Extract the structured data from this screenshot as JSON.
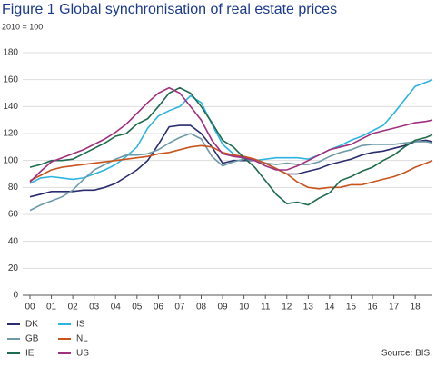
{
  "chart_data": {
    "type": "line",
    "title": "Figure 1  Global synchronisation of real estate prices",
    "subtitle": "2010 = 100",
    "source": "Source: BIS.",
    "x": [
      0,
      0.5,
      1,
      1.5,
      2,
      2.5,
      3,
      3.5,
      4,
      4.5,
      5,
      5.5,
      6,
      6.5,
      7,
      7.5,
      8,
      8.5,
      9,
      9.5,
      10,
      10.5,
      11,
      11.5,
      12,
      12.5,
      13,
      13.5,
      14,
      14.5,
      15,
      15.5,
      16,
      16.5,
      17,
      17.5,
      18,
      18.5,
      18.8
    ],
    "xlim": [
      0,
      18.8
    ],
    "xticks": [
      {
        "value": 0,
        "label": "00"
      },
      {
        "value": 1,
        "label": "01"
      },
      {
        "value": 2,
        "label": "02"
      },
      {
        "value": 3,
        "label": "03"
      },
      {
        "value": 4,
        "label": "04"
      },
      {
        "value": 5,
        "label": "05"
      },
      {
        "value": 6,
        "label": "06"
      },
      {
        "value": 7,
        "label": "07"
      },
      {
        "value": 8,
        "label": "08"
      },
      {
        "value": 9,
        "label": "09"
      },
      {
        "value": 10,
        "label": "10"
      },
      {
        "value": 11,
        "label": "11"
      },
      {
        "value": 12,
        "label": "12"
      },
      {
        "value": 13,
        "label": "13"
      },
      {
        "value": 14,
        "label": "14"
      },
      {
        "value": 15,
        "label": "15"
      },
      {
        "value": 16,
        "label": "16"
      },
      {
        "value": 17,
        "label": "17"
      },
      {
        "value": 18,
        "label": "18"
      }
    ],
    "ylim": [
      0,
      180
    ],
    "yticks": [
      0,
      20,
      40,
      60,
      80,
      100,
      120,
      140,
      160,
      180
    ],
    "grid": true,
    "legend": "bottom-left",
    "series": [
      {
        "name": "DK",
        "color": "#2b2d6e",
        "values": [
          73,
          75,
          77,
          77,
          77,
          78,
          78,
          80,
          83,
          88,
          93,
          100,
          112,
          125,
          126,
          126,
          120,
          110,
          98,
          100,
          100,
          100,
          98,
          94,
          90,
          90,
          92,
          94,
          97,
          99,
          101,
          104,
          106,
          107,
          109,
          111,
          114,
          115,
          114
        ]
      },
      {
        "name": "IS",
        "color": "#2db5e0",
        "values": [
          83,
          87,
          88,
          87,
          86,
          87,
          90,
          93,
          97,
          103,
          110,
          124,
          133,
          137,
          140,
          148,
          143,
          127,
          112,
          105,
          101,
          100,
          101,
          102,
          102,
          102,
          101,
          104,
          108,
          111,
          115,
          118,
          122,
          126,
          135,
          145,
          155,
          158,
          160
        ]
      },
      {
        "name": "GB",
        "color": "#6e9aa8",
        "values": [
          63,
          67,
          70,
          73,
          78,
          86,
          93,
          97,
          101,
          104,
          104,
          105,
          108,
          113,
          117,
          120,
          116,
          103,
          96,
          99,
          101,
          100,
          98,
          97,
          98,
          97,
          97,
          99,
          103,
          106,
          108,
          111,
          112,
          112,
          112,
          113,
          114,
          114,
          113
        ]
      },
      {
        "name": "NL",
        "color": "#c8541e",
        "values": [
          85,
          89,
          93,
          95,
          96,
          97,
          98,
          99,
          100,
          101,
          102,
          103,
          105,
          106,
          108,
          110,
          111,
          110,
          106,
          104,
          103,
          101,
          98,
          94,
          90,
          84,
          80,
          79,
          80,
          80,
          82,
          82,
          84,
          86,
          88,
          91,
          95,
          98,
          100
        ]
      },
      {
        "name": "IE",
        "color": "#1f6b4e",
        "values": [
          95,
          97,
          100,
          100,
          101,
          105,
          109,
          113,
          118,
          120,
          127,
          131,
          140,
          150,
          154,
          150,
          140,
          128,
          115,
          110,
          102,
          95,
          85,
          75,
          68,
          69,
          67,
          72,
          76,
          85,
          88,
          92,
          95,
          100,
          104,
          110,
          115,
          117,
          119
        ]
      },
      {
        "name": "US",
        "color": "#a03080",
        "values": [
          84,
          92,
          99,
          102,
          105,
          108,
          112,
          116,
          121,
          127,
          135,
          143,
          150,
          154,
          150,
          140,
          130,
          115,
          105,
          103,
          102,
          100,
          96,
          93,
          93,
          96,
          100,
          104,
          108,
          110,
          112,
          116,
          120,
          122,
          124,
          126,
          128,
          129,
          130
        ]
      }
    ]
  }
}
